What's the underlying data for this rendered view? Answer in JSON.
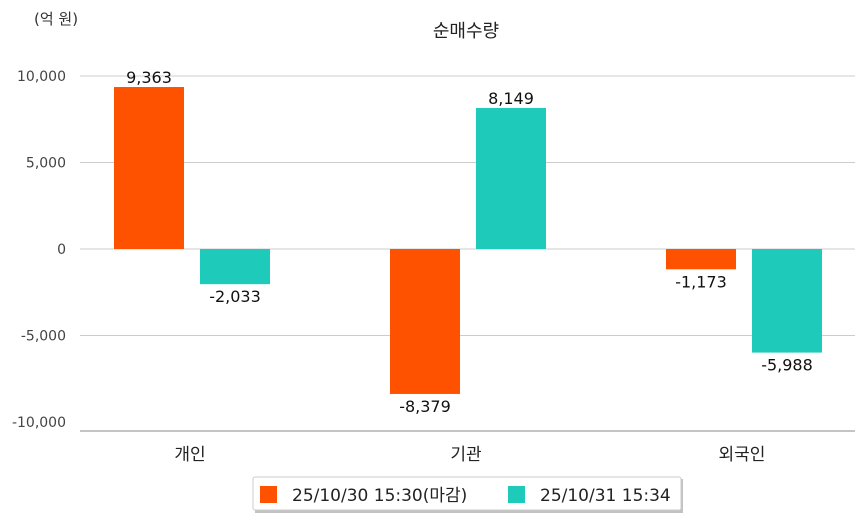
{
  "chart_data": {
    "type": "bar",
    "title": "순매수량",
    "unit_label": "(억 원)",
    "categories": [
      "개인",
      "기관",
      "외국인"
    ],
    "series": [
      {
        "name": "25/10/30 15:30(마감)",
        "color": "#ff5200",
        "values": [
          9363,
          -8379,
          -1173
        ],
        "labels": [
          "9,363",
          "-8,379",
          "-1,173"
        ]
      },
      {
        "name": "25/10/31 15:34",
        "color": "#1ecbbb",
        "values": [
          -2033,
          8149,
          -5988
        ],
        "labels": [
          "-2,033",
          "8,149",
          "-5,988"
        ]
      }
    ],
    "yticks": [
      10000,
      5000,
      0,
      -5000,
      -10000
    ],
    "ytick_labels": [
      "10,000",
      "5,000",
      "0",
      "-5,000",
      "-10,000"
    ],
    "ylim": [
      -10000,
      10000
    ],
    "grid": true,
    "legend": "bottom"
  }
}
